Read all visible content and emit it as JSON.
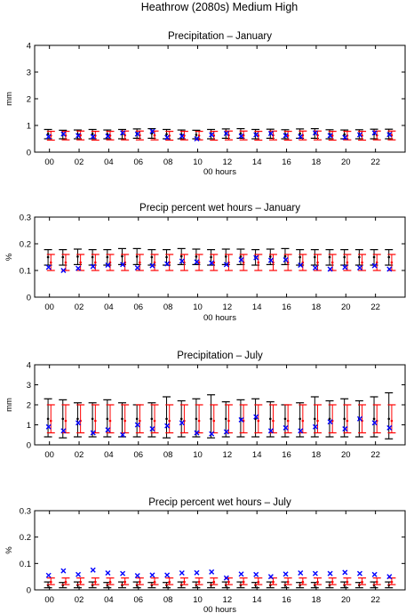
{
  "figure": {
    "title": "Heathrow (2080s) Medium High"
  },
  "colors": {
    "obs": "#000000",
    "model": "#ff0000",
    "marker": "#0000ff",
    "axis": "#000000"
  },
  "chart_data": [
    {
      "type": "errorbar",
      "title": "Precipitation – January",
      "xlabel": "00 hours",
      "ylabel": "mm",
      "xlim": [
        -1,
        24
      ],
      "ylim": [
        0,
        4
      ],
      "yticks": [
        "0",
        "1",
        "2",
        "3",
        "4"
      ],
      "xticks": [
        "00",
        "02",
        "04",
        "06",
        "08",
        "10",
        "12",
        "14",
        "16",
        "18",
        "20",
        "22"
      ],
      "hours": [
        0,
        1,
        2,
        3,
        4,
        5,
        6,
        7,
        8,
        9,
        10,
        11,
        12,
        13,
        14,
        15,
        16,
        17,
        18,
        19,
        20,
        21,
        22,
        23
      ],
      "series": [
        {
          "kind": "black-errorbar",
          "mean": [
            0.68,
            0.66,
            0.67,
            0.68,
            0.67,
            0.68,
            0.7,
            0.7,
            0.67,
            0.66,
            0.65,
            0.68,
            0.7,
            0.7,
            0.68,
            0.69,
            0.67,
            0.69,
            0.7,
            0.67,
            0.66,
            0.67,
            0.68,
            0.68
          ],
          "low": [
            0.5,
            0.5,
            0.5,
            0.5,
            0.5,
            0.5,
            0.52,
            0.52,
            0.5,
            0.5,
            0.5,
            0.5,
            0.52,
            0.52,
            0.5,
            0.52,
            0.5,
            0.52,
            0.52,
            0.5,
            0.5,
            0.5,
            0.5,
            0.5
          ],
          "high": [
            0.85,
            0.82,
            0.83,
            0.85,
            0.83,
            0.85,
            0.87,
            0.88,
            0.85,
            0.83,
            0.82,
            0.85,
            0.87,
            0.88,
            0.85,
            0.86,
            0.84,
            0.87,
            0.88,
            0.84,
            0.83,
            0.84,
            0.86,
            0.86
          ]
        },
        {
          "kind": "red-errorbar",
          "mean": [
            0.62,
            0.62,
            0.63,
            0.62,
            0.62,
            0.63,
            0.63,
            0.63,
            0.62,
            0.62,
            0.62,
            0.62,
            0.63,
            0.63,
            0.62,
            0.63,
            0.62,
            0.63,
            0.63,
            0.62,
            0.62,
            0.62,
            0.63,
            0.63
          ],
          "low": [
            0.45,
            0.46,
            0.46,
            0.45,
            0.46,
            0.46,
            0.46,
            0.46,
            0.45,
            0.46,
            0.46,
            0.45,
            0.46,
            0.46,
            0.45,
            0.46,
            0.45,
            0.46,
            0.46,
            0.45,
            0.46,
            0.45,
            0.46,
            0.46
          ],
          "high": [
            0.78,
            0.78,
            0.79,
            0.78,
            0.78,
            0.79,
            0.79,
            0.79,
            0.78,
            0.78,
            0.78,
            0.78,
            0.79,
            0.79,
            0.78,
            0.79,
            0.78,
            0.79,
            0.79,
            0.78,
            0.78,
            0.78,
            0.79,
            0.79
          ]
        },
        {
          "kind": "blue-x",
          "values": [
            0.58,
            0.68,
            0.62,
            0.58,
            0.6,
            0.72,
            0.68,
            0.78,
            0.55,
            0.6,
            0.5,
            0.65,
            0.7,
            0.6,
            0.65,
            0.7,
            0.62,
            0.58,
            0.72,
            0.62,
            0.55,
            0.65,
            0.72,
            0.66
          ]
        }
      ]
    },
    {
      "type": "errorbar",
      "title": "Precip percent wet hours – January",
      "xlabel": "00 hours",
      "ylabel": "%",
      "xlim": [
        -1,
        24
      ],
      "ylim": [
        0,
        0.3
      ],
      "yticks": [
        "0",
        "0.1",
        "0.2",
        "0.3"
      ],
      "xticks": [
        "00",
        "02",
        "04",
        "06",
        "08",
        "10",
        "12",
        "14",
        "16",
        "18",
        "20",
        "22"
      ],
      "hours": [
        0,
        1,
        2,
        3,
        4,
        5,
        6,
        7,
        8,
        9,
        10,
        11,
        12,
        13,
        14,
        15,
        16,
        17,
        18,
        19,
        20,
        21,
        22,
        23
      ],
      "series": [
        {
          "kind": "black-errorbar",
          "mean": [
            0.15,
            0.15,
            0.152,
            0.15,
            0.15,
            0.153,
            0.152,
            0.15,
            0.15,
            0.153,
            0.152,
            0.15,
            0.152,
            0.152,
            0.15,
            0.152,
            0.153,
            0.15,
            0.15,
            0.15,
            0.15,
            0.15,
            0.15,
            0.15
          ],
          "low": [
            0.12,
            0.12,
            0.122,
            0.12,
            0.12,
            0.122,
            0.122,
            0.12,
            0.12,
            0.122,
            0.122,
            0.12,
            0.122,
            0.122,
            0.12,
            0.122,
            0.122,
            0.12,
            0.12,
            0.12,
            0.12,
            0.12,
            0.12,
            0.12
          ],
          "high": [
            0.178,
            0.178,
            0.18,
            0.178,
            0.178,
            0.182,
            0.182,
            0.178,
            0.178,
            0.182,
            0.18,
            0.178,
            0.18,
            0.18,
            0.178,
            0.18,
            0.182,
            0.178,
            0.178,
            0.178,
            0.178,
            0.178,
            0.178,
            0.178
          ]
        },
        {
          "kind": "red-errorbar",
          "mean": [
            0.13,
            0.13,
            0.13,
            0.13,
            0.13,
            0.13,
            0.13,
            0.13,
            0.13,
            0.13,
            0.13,
            0.13,
            0.13,
            0.13,
            0.13,
            0.13,
            0.13,
            0.13,
            0.13,
            0.13,
            0.13,
            0.13,
            0.13,
            0.13
          ],
          "low": [
            0.1,
            0.1,
            0.1,
            0.1,
            0.1,
            0.1,
            0.1,
            0.1,
            0.1,
            0.1,
            0.1,
            0.1,
            0.1,
            0.1,
            0.1,
            0.1,
            0.1,
            0.1,
            0.1,
            0.1,
            0.1,
            0.1,
            0.1,
            0.1
          ],
          "high": [
            0.16,
            0.16,
            0.16,
            0.16,
            0.16,
            0.16,
            0.16,
            0.16,
            0.16,
            0.16,
            0.16,
            0.16,
            0.16,
            0.16,
            0.16,
            0.16,
            0.16,
            0.16,
            0.16,
            0.16,
            0.16,
            0.16,
            0.16,
            0.16
          ]
        },
        {
          "kind": "blue-x",
          "values": [
            0.112,
            0.1,
            0.108,
            0.115,
            0.12,
            0.122,
            0.11,
            0.118,
            0.125,
            0.135,
            0.132,
            0.128,
            0.122,
            0.14,
            0.148,
            0.138,
            0.14,
            0.12,
            0.11,
            0.105,
            0.112,
            0.11,
            0.118,
            0.105
          ]
        }
      ]
    },
    {
      "type": "errorbar",
      "title": "Precipitation – July",
      "xlabel": "",
      "ylabel": "mm",
      "xlim": [
        -1,
        24
      ],
      "ylim": [
        0,
        4
      ],
      "yticks": [
        "0",
        "1",
        "2",
        "3",
        "4"
      ],
      "xticks": [
        "00",
        "02",
        "04",
        "06",
        "08",
        "10",
        "12",
        "14",
        "16",
        "18",
        "20",
        "22"
      ],
      "hours": [
        0,
        1,
        2,
        3,
        4,
        5,
        6,
        7,
        8,
        9,
        10,
        11,
        12,
        13,
        14,
        15,
        16,
        17,
        18,
        19,
        20,
        21,
        22,
        23
      ],
      "series": [
        {
          "kind": "black-errorbar",
          "mean": [
            1.3,
            1.3,
            1.3,
            1.3,
            1.3,
            1.3,
            1.3,
            1.3,
            1.3,
            1.3,
            1.3,
            1.3,
            1.3,
            1.3,
            1.3,
            1.3,
            1.3,
            1.3,
            1.3,
            1.3,
            1.3,
            1.3,
            1.3,
            1.3
          ],
          "low": [
            0.4,
            0.35,
            0.4,
            0.4,
            0.4,
            0.4,
            0.4,
            0.4,
            0.35,
            0.4,
            0.4,
            0.35,
            0.4,
            0.4,
            0.4,
            0.4,
            0.4,
            0.4,
            0.4,
            0.4,
            0.4,
            0.4,
            0.4,
            0.3
          ],
          "high": [
            2.3,
            2.25,
            2.1,
            2.1,
            2.25,
            2.1,
            2.0,
            2.1,
            2.4,
            2.2,
            2.3,
            2.5,
            2.15,
            2.25,
            2.3,
            2.15,
            2.0,
            2.1,
            2.4,
            2.2,
            2.3,
            2.2,
            2.4,
            2.6
          ]
        },
        {
          "kind": "red-errorbar",
          "mean": [
            1.2,
            1.2,
            1.2,
            1.2,
            1.2,
            1.2,
            1.2,
            1.2,
            1.2,
            1.2,
            1.2,
            1.2,
            1.2,
            1.2,
            1.2,
            1.2,
            1.2,
            1.2,
            1.2,
            1.2,
            1.2,
            1.2,
            1.2,
            1.2
          ],
          "low": [
            0.6,
            0.6,
            0.6,
            0.6,
            0.6,
            0.6,
            0.6,
            0.6,
            0.6,
            0.6,
            0.6,
            0.6,
            0.6,
            0.6,
            0.6,
            0.6,
            0.6,
            0.6,
            0.6,
            0.6,
            0.6,
            0.6,
            0.6,
            0.6
          ],
          "high": [
            2.0,
            2.0,
            2.0,
            2.0,
            2.0,
            2.0,
            2.0,
            2.0,
            2.0,
            2.0,
            2.0,
            2.0,
            2.0,
            2.0,
            2.0,
            2.0,
            2.0,
            2.0,
            2.0,
            2.0,
            2.0,
            2.0,
            2.0,
            2.0
          ]
        },
        {
          "kind": "blue-x",
          "values": [
            0.9,
            0.7,
            1.1,
            0.6,
            0.75,
            0.5,
            1.0,
            0.8,
            0.95,
            1.1,
            0.6,
            0.55,
            0.65,
            1.25,
            1.4,
            0.7,
            0.85,
            0.7,
            0.9,
            1.15,
            0.8,
            1.3,
            1.1,
            0.85
          ]
        }
      ]
    },
    {
      "type": "errorbar",
      "title": "Precip percent wet hours – July",
      "xlabel": "00 hours",
      "ylabel": "%",
      "xlim": [
        -1,
        24
      ],
      "ylim": [
        0,
        0.3
      ],
      "yticks": [
        "0",
        "0.1",
        "0.2",
        "0.3"
      ],
      "xticks": [
        "00",
        "02",
        "04",
        "06",
        "08",
        "10",
        "12",
        "14",
        "16",
        "18",
        "20",
        "22"
      ],
      "hours": [
        0,
        1,
        2,
        3,
        4,
        5,
        6,
        7,
        8,
        9,
        10,
        11,
        12,
        13,
        14,
        15,
        16,
        17,
        18,
        19,
        20,
        21,
        22,
        23
      ],
      "series": [
        {
          "kind": "black-errorbar",
          "mean": [
            0.018,
            0.018,
            0.018,
            0.018,
            0.018,
            0.018,
            0.018,
            0.018,
            0.018,
            0.018,
            0.018,
            0.018,
            0.018,
            0.018,
            0.018,
            0.018,
            0.018,
            0.018,
            0.018,
            0.018,
            0.018,
            0.018,
            0.018,
            0.018
          ],
          "low": [
            0.008,
            0.008,
            0.008,
            0.008,
            0.008,
            0.008,
            0.008,
            0.008,
            0.008,
            0.008,
            0.008,
            0.008,
            0.008,
            0.008,
            0.008,
            0.008,
            0.008,
            0.008,
            0.008,
            0.008,
            0.008,
            0.008,
            0.008,
            0.008
          ],
          "high": [
            0.03,
            0.028,
            0.03,
            0.03,
            0.028,
            0.03,
            0.03,
            0.028,
            0.028,
            0.03,
            0.03,
            0.028,
            0.03,
            0.03,
            0.028,
            0.03,
            0.03,
            0.028,
            0.028,
            0.03,
            0.03,
            0.028,
            0.03,
            0.03
          ]
        },
        {
          "kind": "red-errorbar",
          "mean": [
            0.03,
            0.03,
            0.03,
            0.03,
            0.03,
            0.03,
            0.03,
            0.03,
            0.03,
            0.03,
            0.03,
            0.03,
            0.03,
            0.03,
            0.03,
            0.03,
            0.03,
            0.03,
            0.03,
            0.03,
            0.03,
            0.03,
            0.03,
            0.03
          ],
          "low": [
            0.02,
            0.02,
            0.02,
            0.02,
            0.02,
            0.02,
            0.02,
            0.02,
            0.02,
            0.02,
            0.02,
            0.02,
            0.02,
            0.02,
            0.02,
            0.02,
            0.02,
            0.02,
            0.02,
            0.02,
            0.02,
            0.02,
            0.02,
            0.02
          ],
          "high": [
            0.045,
            0.045,
            0.045,
            0.045,
            0.045,
            0.045,
            0.045,
            0.045,
            0.045,
            0.045,
            0.045,
            0.045,
            0.045,
            0.045,
            0.045,
            0.045,
            0.045,
            0.045,
            0.045,
            0.045,
            0.045,
            0.045,
            0.045,
            0.045
          ]
        },
        {
          "kind": "blue-x",
          "values": [
            0.055,
            0.072,
            0.058,
            0.075,
            0.064,
            0.062,
            0.054,
            0.056,
            0.056,
            0.064,
            0.065,
            0.068,
            0.045,
            0.06,
            0.058,
            0.05,
            0.06,
            0.064,
            0.062,
            0.062,
            0.066,
            0.062,
            0.058,
            0.05
          ]
        }
      ]
    }
  ]
}
